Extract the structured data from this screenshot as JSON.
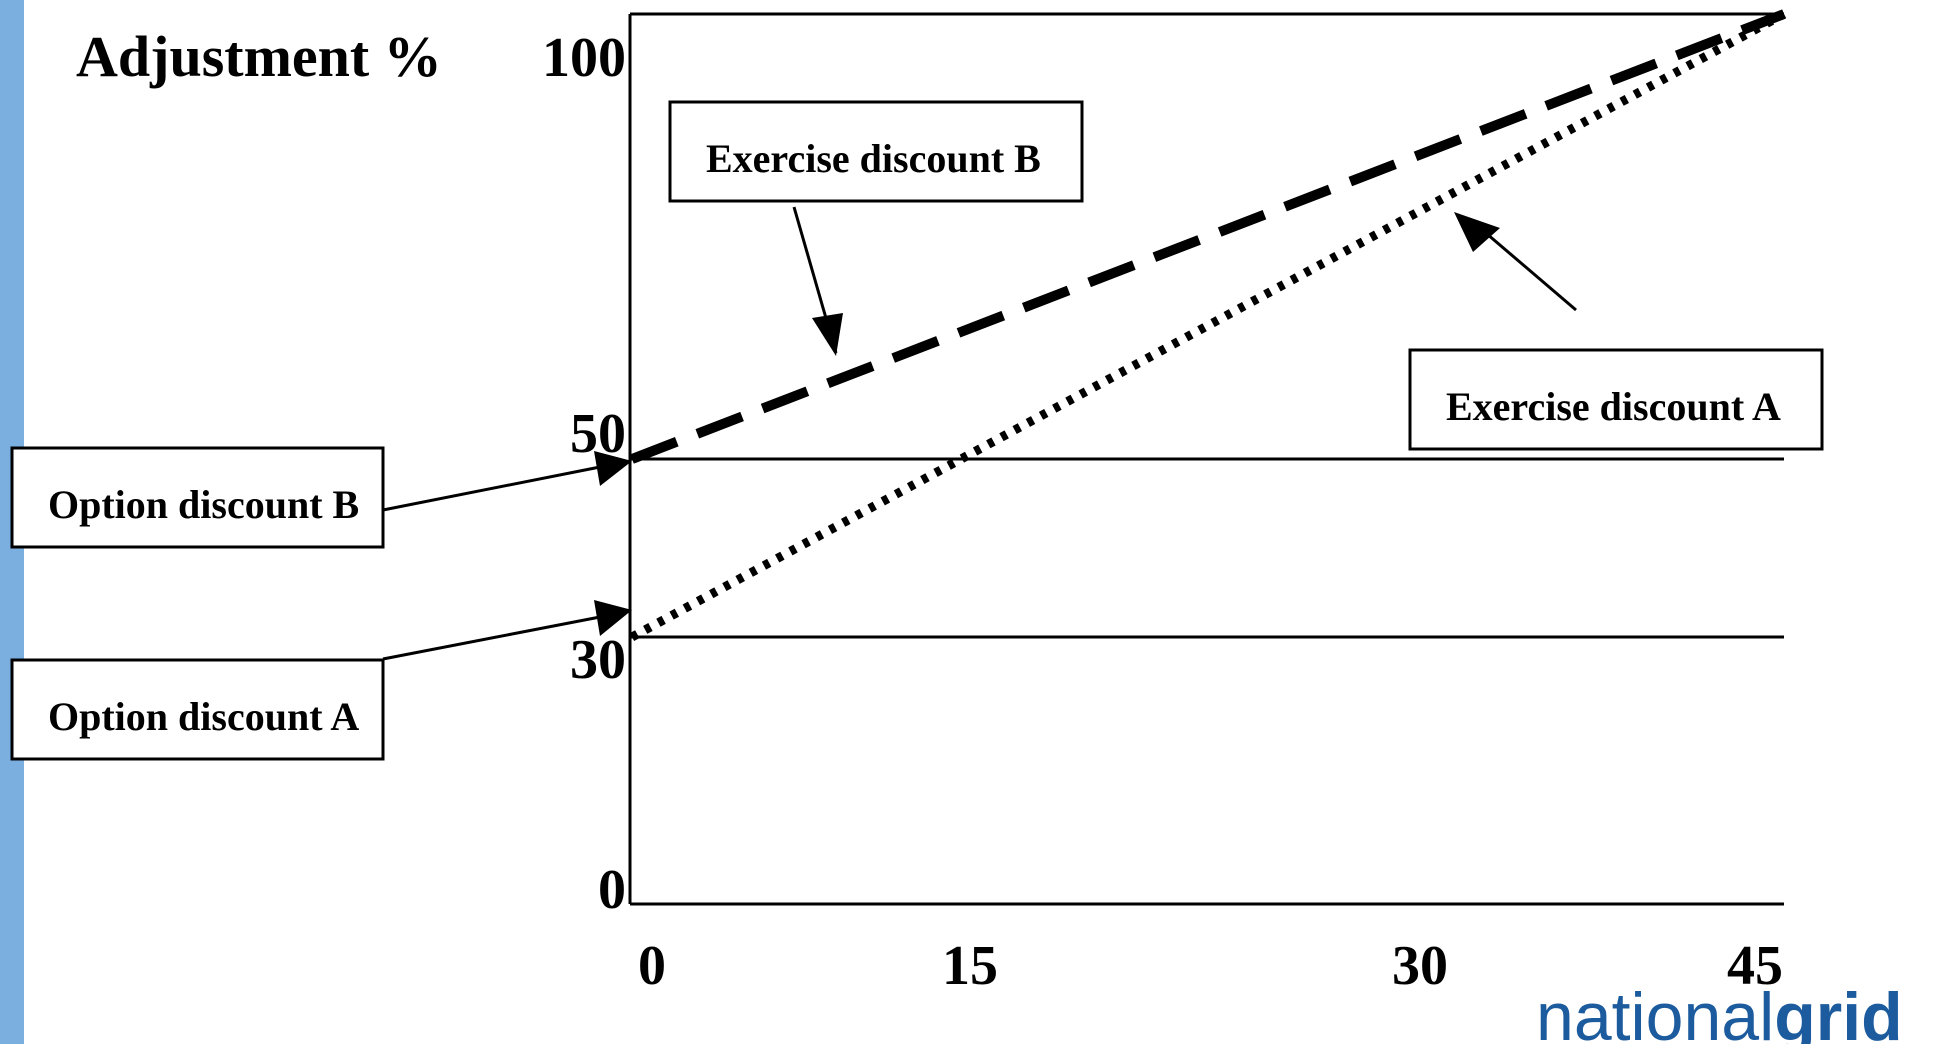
{
  "chart_data": {
    "type": "line",
    "ylabel": "Adjustment %",
    "xlabel": "",
    "xlim": [
      0,
      45
    ],
    "ylim": [
      0,
      100
    ],
    "xticks": [
      0,
      15,
      30,
      45
    ],
    "yticks": [
      0,
      30,
      50,
      100
    ],
    "grid": false,
    "reference_lines": [
      {
        "name": "Option discount B",
        "y": 50
      },
      {
        "name": "Option discount A",
        "y": 30
      }
    ],
    "series": [
      {
        "name": "Exercise discount B",
        "style": "dashed",
        "x": [
          0,
          45
        ],
        "y": [
          50,
          100
        ]
      },
      {
        "name": "Exercise discount A",
        "style": "dotted",
        "x": [
          0,
          45
        ],
        "y": [
          30,
          100
        ]
      }
    ],
    "annotations": [
      {
        "text": "Exercise discount B",
        "points_to": {
          "x": 8,
          "y": 59
        }
      },
      {
        "text": "Exercise discount A",
        "points_to": {
          "x": 32,
          "y": 80
        }
      },
      {
        "text": "Option discount B",
        "points_to": {
          "x": 0,
          "y": 50
        }
      },
      {
        "text": "Option discount A",
        "points_to": {
          "x": 0,
          "y": 30
        }
      }
    ]
  },
  "logo": {
    "part1": "national",
    "part2": "grid"
  },
  "colors": {
    "accent_bar": "#7aafe0",
    "logo": "#1c5c9e",
    "lines": "#000000"
  }
}
